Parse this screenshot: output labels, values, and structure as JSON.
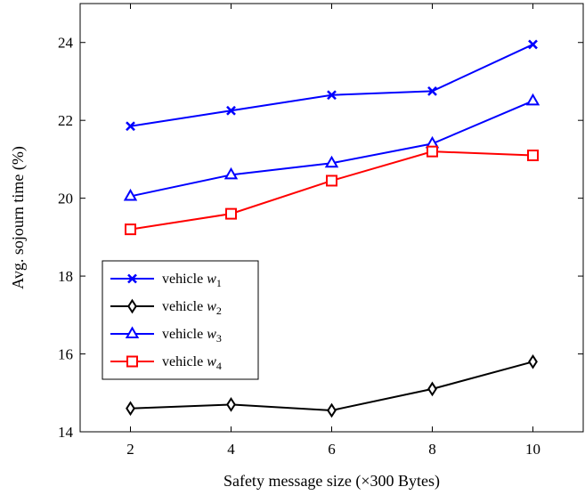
{
  "chart_data": {
    "type": "line",
    "xlabel": "Safety message size (×300 Bytes)",
    "ylabel": "Avg. sojourn time (%)",
    "x": [
      2,
      4,
      6,
      8,
      10
    ],
    "xlim": [
      1,
      11
    ],
    "ylim": [
      14,
      25
    ],
    "xticks": [
      2,
      4,
      6,
      8,
      10
    ],
    "yticks": [
      14,
      16,
      18,
      20,
      22,
      24
    ],
    "grid": false,
    "legend_position": "left-middle",
    "series": [
      {
        "name": "vehicle w1",
        "legend_base": "vehicle ",
        "legend_var": "w",
        "legend_sub": "1",
        "marker": "x",
        "color": "#0000ff",
        "values": [
          21.85,
          22.25,
          22.65,
          22.75,
          23.95
        ]
      },
      {
        "name": "vehicle w2",
        "legend_base": "vehicle ",
        "legend_var": "w",
        "legend_sub": "2",
        "marker": "diamond",
        "color": "#000000",
        "values": [
          14.6,
          14.7,
          14.55,
          15.1,
          15.8
        ]
      },
      {
        "name": "vehicle w3",
        "legend_base": "vehicle ",
        "legend_var": "w",
        "legend_sub": "3",
        "marker": "triangle",
        "color": "#0000ff",
        "values": [
          20.05,
          20.6,
          20.9,
          21.4,
          22.5
        ]
      },
      {
        "name": "vehicle w4",
        "legend_base": "vehicle ",
        "legend_var": "w",
        "legend_sub": "4",
        "marker": "square",
        "color": "#ff0000",
        "values": [
          19.2,
          19.6,
          20.45,
          21.2,
          21.1
        ]
      }
    ]
  }
}
